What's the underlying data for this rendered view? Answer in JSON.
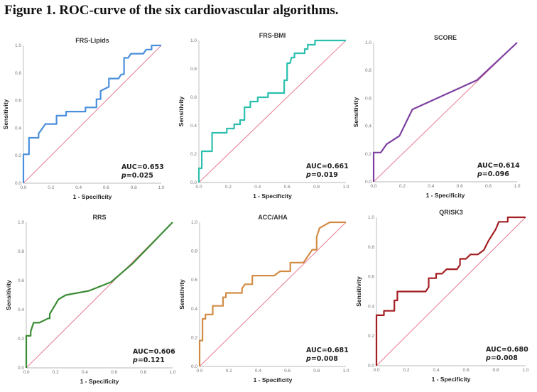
{
  "figure_title": "Figure 1. ROC-curve of the six cardiovascular algorithms.",
  "chart_data": [
    {
      "type": "line",
      "title": "FRS-Lipids",
      "xlabel": "1 - Specificity",
      "ylabel": "Sensitivity",
      "xlim": [
        0,
        1
      ],
      "ylim": [
        0,
        1
      ],
      "xticks": [
        "0.0",
        "0.2",
        "0.4",
        "0.6",
        "0.8",
        "1.0"
      ],
      "yticks": [
        "0.0",
        "0.2",
        "0.4",
        "0.6",
        "0.8",
        "1.0"
      ],
      "color": "#4a8fdc",
      "auc_label": "AUC=0.653",
      "p_prefix": "p",
      "p_value": "=0.025",
      "reference_line": {
        "color": "#e8869a",
        "from": [
          0,
          0
        ],
        "to": [
          1,
          1
        ]
      },
      "points": [
        [
          0,
          0
        ],
        [
          0,
          0.21
        ],
        [
          0.04,
          0.21
        ],
        [
          0.04,
          0.33
        ],
        [
          0.11,
          0.33
        ],
        [
          0.11,
          0.36
        ],
        [
          0.16,
          0.43
        ],
        [
          0.24,
          0.43
        ],
        [
          0.24,
          0.49
        ],
        [
          0.31,
          0.49
        ],
        [
          0.31,
          0.52
        ],
        [
          0.45,
          0.52
        ],
        [
          0.45,
          0.55
        ],
        [
          0.53,
          0.55
        ],
        [
          0.53,
          0.61
        ],
        [
          0.56,
          0.61
        ],
        [
          0.56,
          0.67
        ],
        [
          0.6,
          0.69
        ],
        [
          0.62,
          0.7
        ],
        [
          0.62,
          0.76
        ],
        [
          0.69,
          0.76
        ],
        [
          0.71,
          0.79
        ],
        [
          0.73,
          0.79
        ],
        [
          0.73,
          0.91
        ],
        [
          0.76,
          0.91
        ],
        [
          0.78,
          0.94
        ],
        [
          0.87,
          0.94
        ],
        [
          0.89,
          0.97
        ],
        [
          0.93,
          0.97
        ],
        [
          0.93,
          1.0
        ],
        [
          1.0,
          1.0
        ]
      ]
    },
    {
      "type": "line",
      "title": "FRS-BMI",
      "xlabel": "1 - Specificity",
      "ylabel": "Sensitivity",
      "xlim": [
        0,
        1
      ],
      "ylim": [
        0,
        1
      ],
      "xticks": [
        "0.0",
        "0.2",
        "0.4",
        "0.6",
        "0.8",
        "1.0"
      ],
      "yticks": [
        "0.0",
        "0.2",
        "0.4",
        "0.6",
        "0.8",
        "1.0"
      ],
      "color": "#2bbfae",
      "auc_label": "AUC=0.661",
      "p_prefix": "p",
      "p_value": "=0.019",
      "reference_line": {
        "color": "#e8869a",
        "from": [
          0,
          0
        ],
        "to": [
          1,
          1
        ]
      },
      "points": [
        [
          0,
          0
        ],
        [
          0,
          0.1
        ],
        [
          0.02,
          0.1
        ],
        [
          0.02,
          0.22
        ],
        [
          0.09,
          0.22
        ],
        [
          0.09,
          0.35
        ],
        [
          0.19,
          0.35
        ],
        [
          0.19,
          0.38
        ],
        [
          0.24,
          0.38
        ],
        [
          0.24,
          0.41
        ],
        [
          0.28,
          0.41
        ],
        [
          0.28,
          0.44
        ],
        [
          0.31,
          0.44
        ],
        [
          0.31,
          0.53
        ],
        [
          0.35,
          0.53
        ],
        [
          0.35,
          0.57
        ],
        [
          0.4,
          0.57
        ],
        [
          0.4,
          0.6
        ],
        [
          0.47,
          0.6
        ],
        [
          0.47,
          0.63
        ],
        [
          0.58,
          0.63
        ],
        [
          0.58,
          0.72
        ],
        [
          0.6,
          0.72
        ],
        [
          0.6,
          0.84
        ],
        [
          0.62,
          0.84
        ],
        [
          0.63,
          0.88
        ],
        [
          0.65,
          0.88
        ],
        [
          0.65,
          0.91
        ],
        [
          0.72,
          0.91
        ],
        [
          0.72,
          0.94
        ],
        [
          0.74,
          0.94
        ],
        [
          0.74,
          0.97
        ],
        [
          0.79,
          0.97
        ],
        [
          0.79,
          1.0
        ],
        [
          1.0,
          1.0
        ]
      ]
    },
    {
      "type": "line",
      "title": "SCORE",
      "xlabel": "1 - Specificity",
      "ylabel": "Sensitivity",
      "xlim": [
        0,
        1
      ],
      "ylim": [
        0,
        1
      ],
      "xticks": [
        "0.0",
        "0.2",
        "0.4",
        "0.6",
        "0.8",
        "1.0"
      ],
      "yticks": [
        "0.0",
        "0.2",
        "0.4",
        "0.6",
        "0.8",
        "1.0"
      ],
      "color": "#7d3fa0",
      "auc_label": "AUC=0.614",
      "p_prefix": "p",
      "p_value": "=0.096",
      "reference_line": {
        "color": "#e8869a",
        "from": [
          0,
          0
        ],
        "to": [
          1,
          1
        ]
      },
      "points": [
        [
          0,
          0
        ],
        [
          0,
          0.21
        ],
        [
          0.05,
          0.21
        ],
        [
          0.09,
          0.27
        ],
        [
          0.18,
          0.33
        ],
        [
          0.27,
          0.52
        ],
        [
          0.72,
          0.73
        ],
        [
          1.0,
          1.0
        ]
      ]
    },
    {
      "type": "line",
      "title": "RRS",
      "xlabel": "1 - Specificity",
      "ylabel": "Sensitivity",
      "xlim": [
        0,
        1
      ],
      "ylim": [
        0,
        1
      ],
      "xticks": [
        "0.0",
        "0.2",
        "0.4",
        "0.6",
        "0.8",
        "1.0"
      ],
      "yticks": [
        "0.0",
        "0.2",
        "0.4",
        "0.6",
        "0.8",
        "1.0"
      ],
      "color": "#3a8c34",
      "auc_label": "AUC=0.606",
      "p_prefix": "p",
      "p_value": "=0.121",
      "reference_line": {
        "color": "#e8869a",
        "from": [
          0,
          0
        ],
        "to": [
          1,
          1
        ]
      },
      "points": [
        [
          0,
          0
        ],
        [
          0,
          0.22
        ],
        [
          0.03,
          0.22
        ],
        [
          0.03,
          0.25
        ],
        [
          0.05,
          0.31
        ],
        [
          0.09,
          0.31
        ],
        [
          0.15,
          0.34
        ],
        [
          0.16,
          0.34
        ],
        [
          0.16,
          0.37
        ],
        [
          0.19,
          0.42
        ],
        [
          0.22,
          0.47
        ],
        [
          0.27,
          0.5
        ],
        [
          0.43,
          0.53
        ],
        [
          0.58,
          0.59
        ],
        [
          0.73,
          0.72
        ],
        [
          1.0,
          1.0
        ]
      ]
    },
    {
      "type": "line",
      "title": "ACC/AHA",
      "xlabel": "1 - Specificity",
      "ylabel": "Sensitivity",
      "xlim": [
        0,
        1
      ],
      "ylim": [
        0,
        1
      ],
      "xticks": [
        "0.0",
        "0.2",
        "0.4",
        "0.6",
        "0.8",
        "1.0"
      ],
      "yticks": [
        "0.0",
        "0.2",
        "0.4",
        "0.6",
        "0.8",
        "1.0"
      ],
      "color": "#d28c45",
      "auc_label": "AUC=0.681",
      "p_prefix": "p",
      "p_value": "=0.008",
      "reference_line": {
        "color": "#e8869a",
        "from": [
          0,
          0
        ],
        "to": [
          1,
          1
        ]
      },
      "points": [
        [
          0,
          0
        ],
        [
          0,
          0.18
        ],
        [
          0.02,
          0.18
        ],
        [
          0.02,
          0.33
        ],
        [
          0.04,
          0.33
        ],
        [
          0.04,
          0.36
        ],
        [
          0.09,
          0.36
        ],
        [
          0.09,
          0.42
        ],
        [
          0.16,
          0.42
        ],
        [
          0.16,
          0.48
        ],
        [
          0.18,
          0.48
        ],
        [
          0.18,
          0.51
        ],
        [
          0.29,
          0.51
        ],
        [
          0.29,
          0.54
        ],
        [
          0.31,
          0.57
        ],
        [
          0.36,
          0.57
        ],
        [
          0.36,
          0.63
        ],
        [
          0.51,
          0.63
        ],
        [
          0.55,
          0.66
        ],
        [
          0.62,
          0.66
        ],
        [
          0.62,
          0.72
        ],
        [
          0.71,
          0.72
        ],
        [
          0.77,
          0.81
        ],
        [
          0.8,
          0.81
        ],
        [
          0.8,
          0.9
        ],
        [
          0.82,
          0.96
        ],
        [
          0.89,
          1.0
        ],
        [
          1.0,
          1.0
        ]
      ]
    },
    {
      "type": "line",
      "title": "QRISK3",
      "xlabel": "1 - Specificity",
      "ylabel": "Sensitivity",
      "xlim": [
        0,
        1
      ],
      "ylim": [
        0,
        1
      ],
      "xticks": [
        "0.0",
        "0.2",
        "0.4",
        "0.6",
        "0.8",
        "1.0"
      ],
      "yticks": [
        "0.0",
        "0.2",
        "0.4",
        "0.6",
        "0.8",
        "1.0"
      ],
      "color": "#a31e22",
      "auc_label": "AUC=0.680",
      "p_prefix": "p",
      "p_value": "=0.008",
      "reference_line": {
        "color": "#e8869a",
        "from": [
          0,
          0
        ],
        "to": [
          1,
          1
        ]
      },
      "points": [
        [
          0,
          0
        ],
        [
          0,
          0.34
        ],
        [
          0.05,
          0.34
        ],
        [
          0.05,
          0.37
        ],
        [
          0.12,
          0.37
        ],
        [
          0.12,
          0.44
        ],
        [
          0.14,
          0.44
        ],
        [
          0.14,
          0.5
        ],
        [
          0.33,
          0.5
        ],
        [
          0.35,
          0.53
        ],
        [
          0.35,
          0.59
        ],
        [
          0.4,
          0.59
        ],
        [
          0.4,
          0.62
        ],
        [
          0.44,
          0.62
        ],
        [
          0.47,
          0.65
        ],
        [
          0.54,
          0.65
        ],
        [
          0.56,
          0.68
        ],
        [
          0.56,
          0.72
        ],
        [
          0.6,
          0.72
        ],
        [
          0.63,
          0.75
        ],
        [
          0.68,
          0.75
        ],
        [
          0.72,
          0.78
        ],
        [
          0.75,
          0.84
        ],
        [
          0.8,
          0.92
        ],
        [
          0.82,
          0.97
        ],
        [
          0.88,
          0.97
        ],
        [
          0.88,
          1.0
        ],
        [
          1.0,
          1.0
        ]
      ]
    }
  ]
}
